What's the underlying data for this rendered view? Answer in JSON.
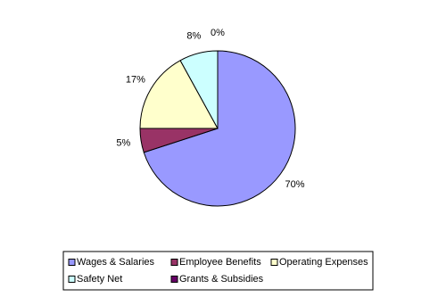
{
  "chart_data": {
    "type": "pie",
    "categories": [
      "Wages & Salaries",
      "Employee Benefits",
      "Operating Expenses",
      "Safety Net",
      "Grants & Subsidies"
    ],
    "values": [
      70,
      5,
      17,
      8,
      0
    ],
    "value_labels": [
      "70%",
      "5%",
      "17%",
      "8%",
      "0%"
    ],
    "colors": [
      "#9999ff",
      "#993366",
      "#ffffcc",
      "#ccffff",
      "#660066"
    ],
    "legend": "bottom"
  }
}
